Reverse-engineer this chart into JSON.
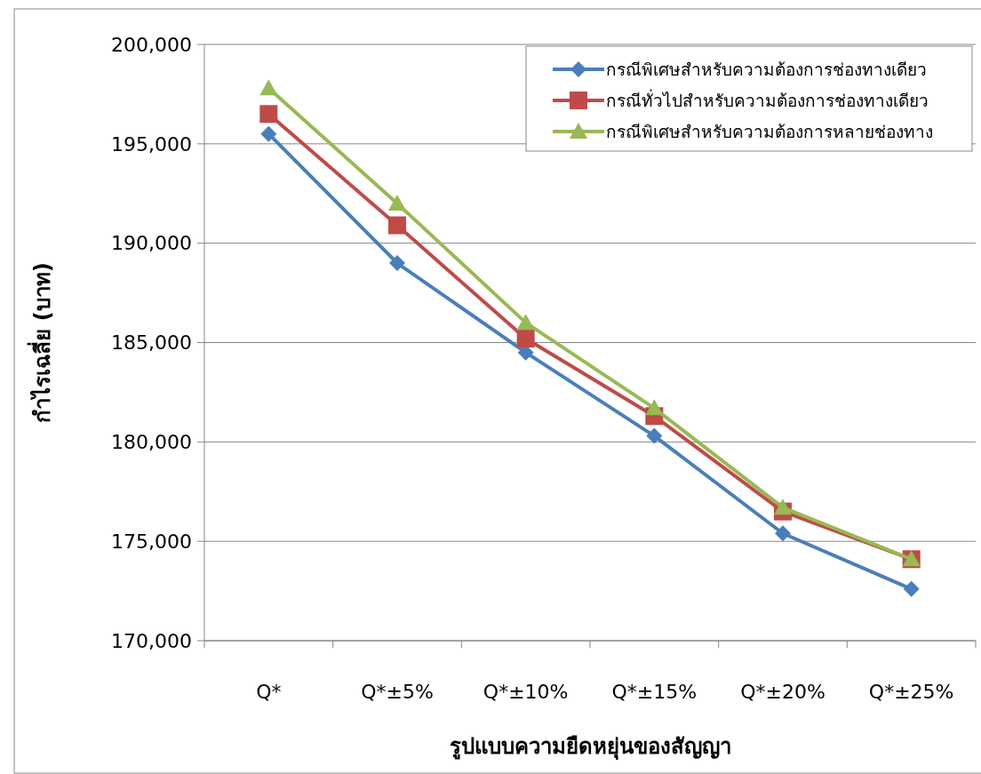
{
  "chart_data": {
    "type": "line",
    "xlabel": "รูปแบบความยืดหยุ่นของสัญญา",
    "ylabel": "กำไรเฉลี่ย (บาท)",
    "categories": [
      "Q*",
      "Q*±5%",
      "Q*±10%",
      "Q*±15%",
      "Q*±20%",
      "Q*±25%"
    ],
    "series": [
      {
        "name": "กรณีพิเศษสำหรับความต้องการช่องทางเดียว",
        "color": "#4a7ebb",
        "marker": "diamond",
        "values": [
          195500,
          189000,
          184500,
          180300,
          175400,
          172600
        ]
      },
      {
        "name": "กรณีทั่วไปสำหรับความต้องการช่องทางเดียว",
        "color": "#be4b48",
        "marker": "square",
        "values": [
          196500,
          190900,
          185200,
          181300,
          176500,
          174100
        ]
      },
      {
        "name": "กรณีพิเศษสำหรับความต้องการหลายช่องทาง",
        "color": "#98b954",
        "marker": "triangle",
        "values": [
          197800,
          192000,
          186000,
          181700,
          176700,
          174100
        ]
      }
    ],
    "ylim": [
      170000,
      200000
    ],
    "yticks": [
      {
        "value": 170000,
        "label": "170,000"
      },
      {
        "value": 175000,
        "label": "175,000"
      },
      {
        "value": 180000,
        "label": "180,000"
      },
      {
        "value": 185000,
        "label": "185,000"
      },
      {
        "value": 190000,
        "label": "190,000"
      },
      {
        "value": 195000,
        "label": "195,000"
      },
      {
        "value": 200000,
        "label": "200,000"
      }
    ],
    "grid": "y",
    "legend": "top right",
    "line_style": "solid"
  }
}
